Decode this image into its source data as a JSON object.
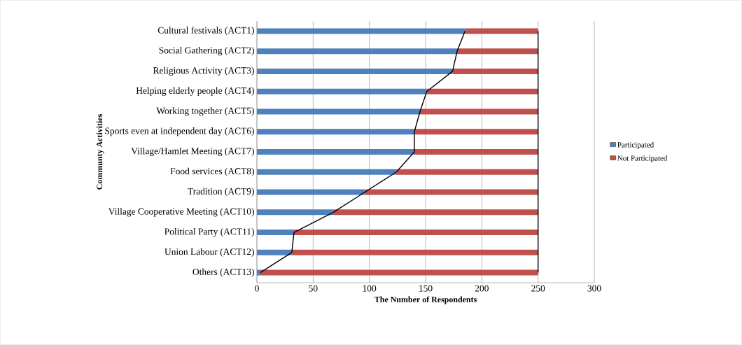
{
  "chart_data": {
    "type": "bar",
    "orientation": "horizontal",
    "stacked": true,
    "xlabel": "The Number of Respondents",
    "ylabel": "Communty Activities",
    "categories": [
      "Cultural festivals (ACT1)",
      "Social Gathering (ACT2)",
      "Religious Activity (ACT3)",
      "Helping elderly people (ACT4)",
      "Working together (ACT5)",
      "Sports even at independent day (ACT6)",
      "Village/Hamlet Meeting (ACT7)",
      "Food services (ACT8)",
      "Tradition (ACT9)",
      "Village Cooperative Meeting (ACT10)",
      "Political Party (ACT11)",
      "Union Labour (ACT12)",
      "Others (ACT13)"
    ],
    "series": [
      {
        "name": "Participated",
        "color": "#4f81bd",
        "values": [
          185,
          178,
          174,
          151,
          145,
          140,
          140,
          124,
          96,
          68,
          33,
          31,
          3
        ]
      },
      {
        "name": "Not Participated",
        "color": "#c0504d",
        "values": [
          65,
          72,
          76,
          99,
          105,
          110,
          110,
          126,
          154,
          182,
          217,
          219,
          247
        ]
      },
      {
        "type": "line",
        "color": "#000000",
        "values": [
          185,
          178,
          174,
          151,
          145,
          140,
          140,
          124,
          96,
          68,
          33,
          31,
          3
        ]
      },
      {
        "type": "line",
        "color": "#000000",
        "values": [
          250,
          250,
          250,
          250,
          250,
          250,
          250,
          250,
          250,
          250,
          250,
          250,
          250
        ]
      }
    ],
    "xlim": [
      0,
      300
    ],
    "xticks": [
      0,
      50,
      100,
      150,
      200,
      250,
      300
    ],
    "grid": "x",
    "legend": "right"
  }
}
